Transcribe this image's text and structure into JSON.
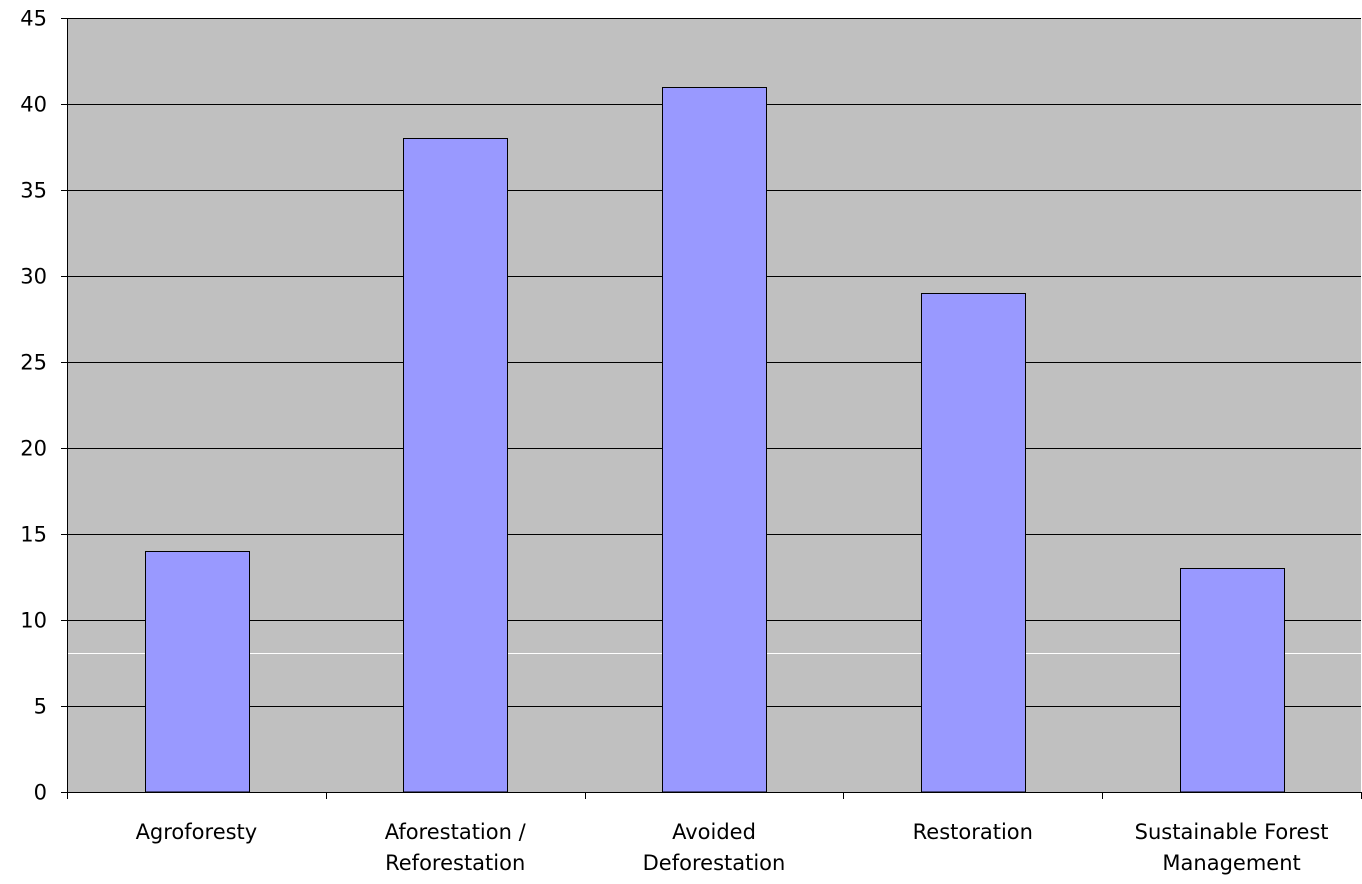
{
  "chart_data": {
    "type": "bar",
    "title": "",
    "xlabel": "",
    "ylabel": "",
    "categories": [
      [
        "Agroforesty"
      ],
      [
        "Aforestation /",
        "Reforestation"
      ],
      [
        "Avoided",
        "Deforestation"
      ],
      [
        "Restoration"
      ],
      [
        "Sustainable Forest",
        "Management"
      ]
    ],
    "values": [
      14,
      38,
      41,
      29,
      13
    ],
    "ylim": [
      0,
      45
    ],
    "yticks": [
      0,
      5,
      10,
      15,
      20,
      25,
      30,
      35,
      40,
      45
    ],
    "grid": true,
    "legend": "none",
    "colors": {
      "plot_background": "#c0c0c0",
      "bar_fill": "#9999ff",
      "bar_stroke": "#000000",
      "gridline": "#000000"
    }
  }
}
